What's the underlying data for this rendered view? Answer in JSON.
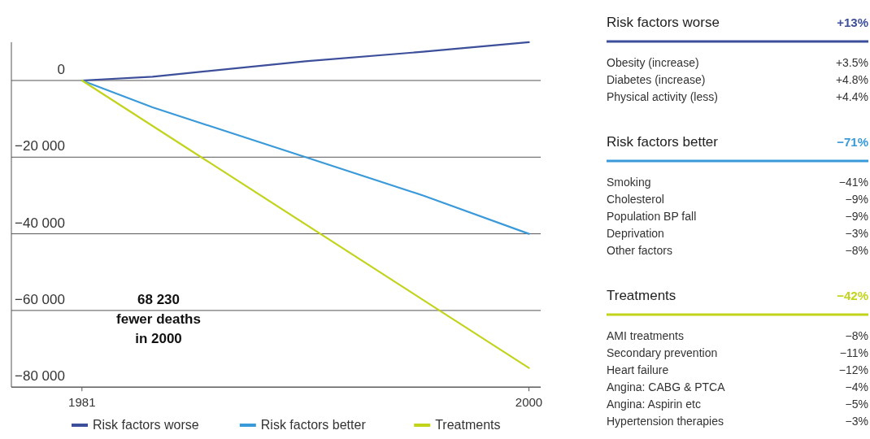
{
  "chart_data": [
    {
      "type": "line",
      "xlim": [
        1978,
        2000.5
      ],
      "xticks": [
        1981,
        2000
      ],
      "ylim": [
        -80000,
        10000
      ],
      "yticks": [
        {
          "value": 0,
          "label": "0"
        },
        {
          "value": -20000,
          "label": "−20 000"
        },
        {
          "value": -40000,
          "label": "−40 000"
        },
        {
          "value": -60000,
          "label": "−60 000"
        },
        {
          "value": -80000,
          "label": "−80 000"
        }
      ],
      "grid": "y",
      "legend": "bottom",
      "annotations": [
        "68 230\nfewer deaths\nin 2000"
      ],
      "series": [
        {
          "name": "Risk factors worse",
          "color": "#3d4f9a",
          "x": [
            1981,
            1984,
            1990.5,
            1995.5,
            2000
          ],
          "values": [
            0,
            1000,
            5000,
            7500,
            10000
          ]
        },
        {
          "name": "Risk factors better",
          "color": "#3a9ad9",
          "x": [
            1981,
            1984,
            1990.5,
            1995.5,
            2000
          ],
          "values": [
            0,
            -7000,
            -20000,
            -30000,
            -40000
          ]
        },
        {
          "name": "Treatments",
          "color": "#c2d31c",
          "x": [
            1981,
            2000
          ],
          "values": [
            0,
            -75000
          ]
        }
      ]
    },
    {
      "type": "other",
      "title": "Risk factors worse",
      "color": "#3d4f9a",
      "totals": [
        "+13%"
      ],
      "categories": [
        "Obesity (increase)",
        "Diabetes (increase)",
        "Physical activity (less)"
      ],
      "value_labels": [
        "+3.5%",
        "+4.8%",
        "+4.4%"
      ]
    },
    {
      "type": "other",
      "title": "Risk factors better",
      "color": "#3a9ad9",
      "totals": [
        "−71%"
      ],
      "categories": [
        "Smoking",
        "Cholesterol",
        "Population BP fall",
        "Deprivation",
        "Other factors"
      ],
      "value_labels": [
        "−41%",
        "−9%",
        "−9%",
        "−3%",
        "−8%"
      ]
    },
    {
      "type": "other",
      "title": "Treatments",
      "color": "#c2d31c",
      "totals": [
        "−42%"
      ],
      "categories": [
        "AMI treatments",
        "Secondary prevention",
        "Heart failure",
        "Angina: CABG & PTCA",
        "Angina: Aspirin etc",
        "Hypertension therapies"
      ],
      "value_labels": [
        "−8%",
        "−11%",
        "−12%",
        "−4%",
        "−5%",
        "−3%"
      ]
    }
  ]
}
